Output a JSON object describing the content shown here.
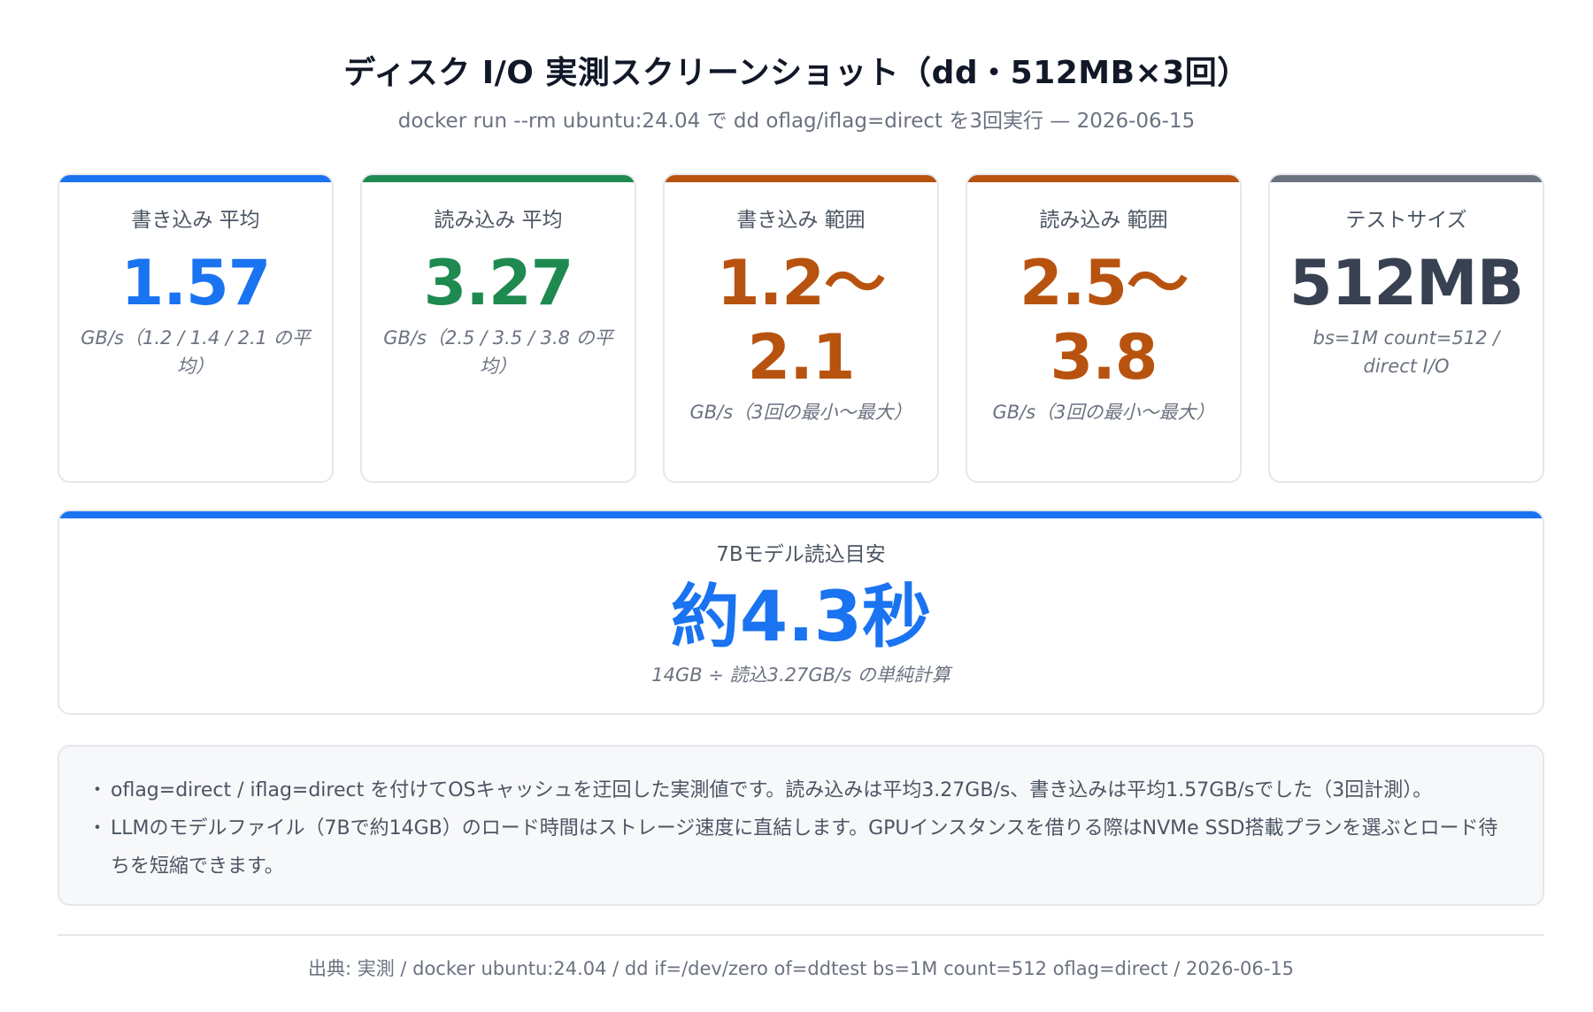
{
  "header": {
    "title": "ディスク I/O 実測スクリーンショット（dd・512MB×3回）",
    "subtitle": "docker run --rm ubuntu:24.04 で dd oflag/iflag=direct を3回実行 — 2026-06-15"
  },
  "cards": [
    {
      "label": "書き込み 平均",
      "value": "1.57",
      "note": "GB/s（1.2 / 1.4 / 2.1 の平均）",
      "color": "#1a73f0"
    },
    {
      "label": "読み込み 平均",
      "value": "3.27",
      "note": "GB/s（2.5 / 3.5 / 3.8 の平均）",
      "color": "#1e8a4f"
    },
    {
      "label": "書き込み 範囲",
      "value": "1.2〜2.1",
      "note": "GB/s（3回の最小〜最大）",
      "color": "#b8530f"
    },
    {
      "label": "読み込み 範囲",
      "value": "2.5〜3.8",
      "note": "GB/s（3回の最小〜最大）",
      "color": "#b8530f"
    },
    {
      "label": "テストサイズ",
      "value": "512MB",
      "note": "bs=1M count=512 / direct I/O",
      "color": "#374151",
      "bar_color": "#6b7280"
    }
  ],
  "load_estimate": {
    "label": "7Bモデル読込目安",
    "value": "約4.3秒",
    "note": "14GB ÷ 読込3.27GB/s の単純計算",
    "color": "#1a73f0"
  },
  "notes": [
    "oflag=direct / iflag=direct を付けてOSキャッシュを迂回した実測値です。読み込みは平均3.27GB/s、書き込みは平均1.57GB/sでした（3回計測）。",
    "LLMのモデルファイル（7Bで約14GB）のロード時間はストレージ速度に直結します。GPUインスタンスを借りる際はNVMe SSD搭載プランを選ぶとロード待ちを短縮できます。"
  ],
  "footer": "出典: 実測 / docker ubuntu:24.04 / dd if=/dev/zero of=ddtest bs=1M count=512 oflag=direct / 2026-06-15"
}
